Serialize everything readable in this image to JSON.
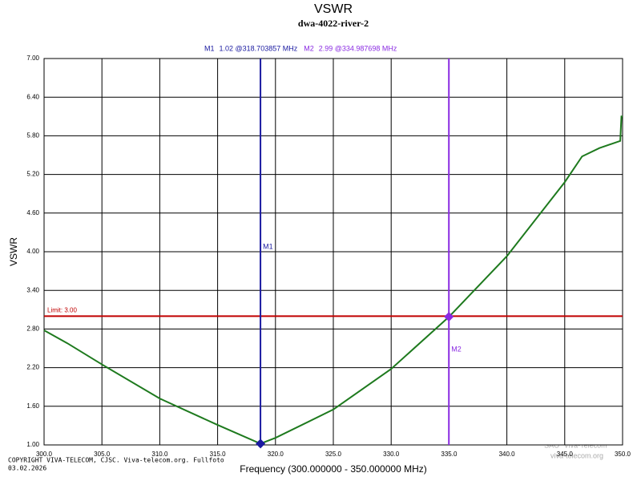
{
  "chart_data": {
    "type": "line",
    "title": "VSWR",
    "subtitle": "dwa-4022-river-2",
    "x_label": "Frequency (300.000000 - 350.000000 MHz)",
    "y_label": "VSWR",
    "x": [
      300,
      302,
      305,
      310,
      315,
      318.7,
      320,
      325,
      330,
      335,
      340,
      345,
      346.5,
      348,
      349.8,
      349.9,
      350
    ],
    "series": [
      {
        "color": "#1e7a1e",
        "values": [
          2.78,
          2.58,
          2.25,
          1.72,
          1.31,
          1.02,
          1.11,
          1.55,
          2.18,
          2.99,
          3.93,
          5.08,
          5.48,
          5.61,
          5.72,
          6.1,
          6.1
        ]
      }
    ],
    "xlim": [
      300,
      350
    ],
    "ylim": [
      1,
      7
    ],
    "xticks": [
      {
        "value": 300,
        "label": "300.0"
      },
      {
        "value": 305,
        "label": "305.0"
      },
      {
        "value": 310,
        "label": "310.0"
      },
      {
        "value": 315,
        "label": "315.0"
      },
      {
        "value": 320,
        "label": "320.0"
      },
      {
        "value": 325,
        "label": "325.0"
      },
      {
        "value": 330,
        "label": "330.0"
      },
      {
        "value": 335,
        "label": "335.0"
      },
      {
        "value": 340,
        "label": "340.0"
      },
      {
        "value": 345,
        "label": "345.0"
      },
      {
        "value": 350,
        "label": "350.0"
      }
    ],
    "yticks": [
      {
        "value": 1,
        "label": "1.00"
      },
      {
        "value": 1.6,
        "label": "1.60"
      },
      {
        "value": 2.2,
        "label": "2.20"
      },
      {
        "value": 2.8,
        "label": "2.80"
      },
      {
        "value": 3.4,
        "label": "3.40"
      },
      {
        "value": 4,
        "label": "4.00"
      },
      {
        "value": 4.6,
        "label": "4.60"
      },
      {
        "value": 5.2,
        "label": "5.20"
      },
      {
        "value": 5.8,
        "label": "5.80"
      },
      {
        "value": 6.4,
        "label": "6.40"
      },
      {
        "value": 7,
        "label": "7.00"
      }
    ],
    "grid": true,
    "limit": {
      "value": 3,
      "label": "Limit: 3.00",
      "color": "#c00000"
    },
    "markers": [
      {
        "name": "M1",
        "x": 318.703857,
        "value": 1.02,
        "readout": "1.02 @318.703857 MHz",
        "color": "#1a1aa0"
      },
      {
        "name": "M2",
        "x": 334.987698,
        "value": 2.99,
        "readout": "2.99 @334.987698 MHz",
        "color": "#8a2be2"
      }
    ],
    "footer": [
      "COPYRIGHT VIVA-TELECOM, CJSC. Viva-telecom.org. Fullfoto",
      "03.02.2026"
    ],
    "watermark": [
      "SAO \"Viva-Telecom\"",
      "viva-telecom.org"
    ]
  }
}
